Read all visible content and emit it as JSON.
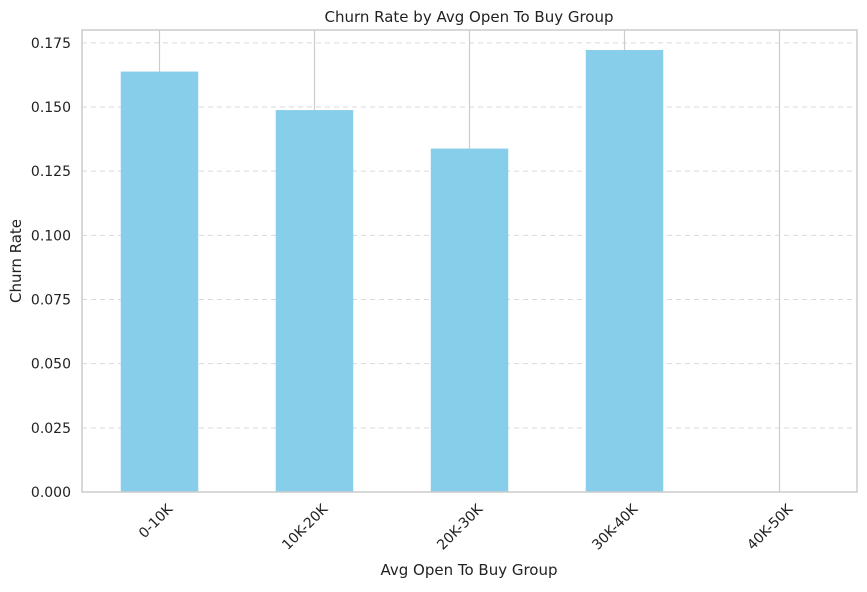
{
  "chart_data": {
    "type": "bar",
    "title": "Churn Rate by Avg Open To Buy Group",
    "xlabel": "Avg Open To Buy Group",
    "ylabel": "Churn Rate",
    "categories": [
      "0-10K",
      "10K-20K",
      "20K-30K",
      "30K-40K",
      "40K-50K"
    ],
    "values": [
      0.1638,
      0.1488,
      0.1338,
      0.1722,
      0.0
    ],
    "ylim": [
      0,
      0.18
    ],
    "yticks": [
      0.0,
      0.025,
      0.05,
      0.075,
      0.1,
      0.125,
      0.15,
      0.175
    ],
    "ytick_labels": [
      "0.000",
      "0.025",
      "0.050",
      "0.075",
      "0.100",
      "0.125",
      "0.150",
      "0.175"
    ],
    "grid": "y dashed",
    "bar_color": "#87CEEB",
    "grid_color": "#d9d9d9",
    "axis_color": "#cccccc",
    "xtick_rotation": 45
  }
}
